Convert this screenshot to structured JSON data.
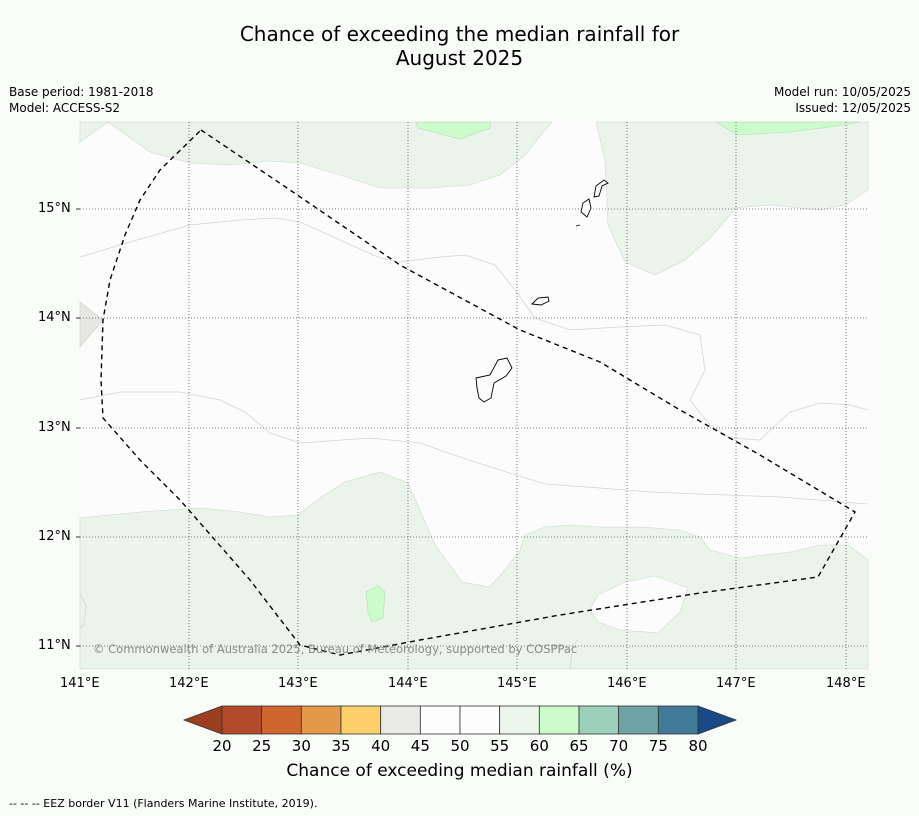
{
  "title": {
    "line1": "Chance of exceeding the median rainfall for",
    "line2": "August 2025"
  },
  "meta_left": {
    "base_period": "Base period: 1981-2018",
    "model": "Model: ACCESS-S2"
  },
  "meta_right": {
    "model_run": "Model run: 10/05/2025",
    "issued": "Issued: 12/05/2025"
  },
  "map": {
    "lon_labels": [
      "141°E",
      "142°E",
      "143°E",
      "144°E",
      "145°E",
      "146°E",
      "147°E",
      "148°E"
    ],
    "lat_labels": [
      "15°N",
      "14°N",
      "13°N",
      "12°N",
      "11°N"
    ],
    "copyright": "© Commonwealth of Australia 2025, Bureau of Meteorology, supported by COSPPac"
  },
  "colorbar": {
    "title": "Chance of exceeding median rainfall (%)",
    "ticks": [
      "20",
      "25",
      "30",
      "35",
      "40",
      "45",
      "50",
      "55",
      "60",
      "65",
      "70",
      "75",
      "80"
    ],
    "colors": [
      "#b34a29",
      "#d0662f",
      "#e4984a",
      "#fdd06b",
      "#e9e9e6",
      "#fcfdfc",
      "#fcfdfc",
      "#ebf5eb",
      "#ccfccc",
      "#9ccfbb",
      "#6ea4a6",
      "#407a98",
      "#1a4f8a"
    ],
    "under_color": "#9c3d20",
    "over_color": "#174a86"
  },
  "footnote": "--  --  -- EEZ border V11 (Flanders Marine Institute, 2019)."
}
